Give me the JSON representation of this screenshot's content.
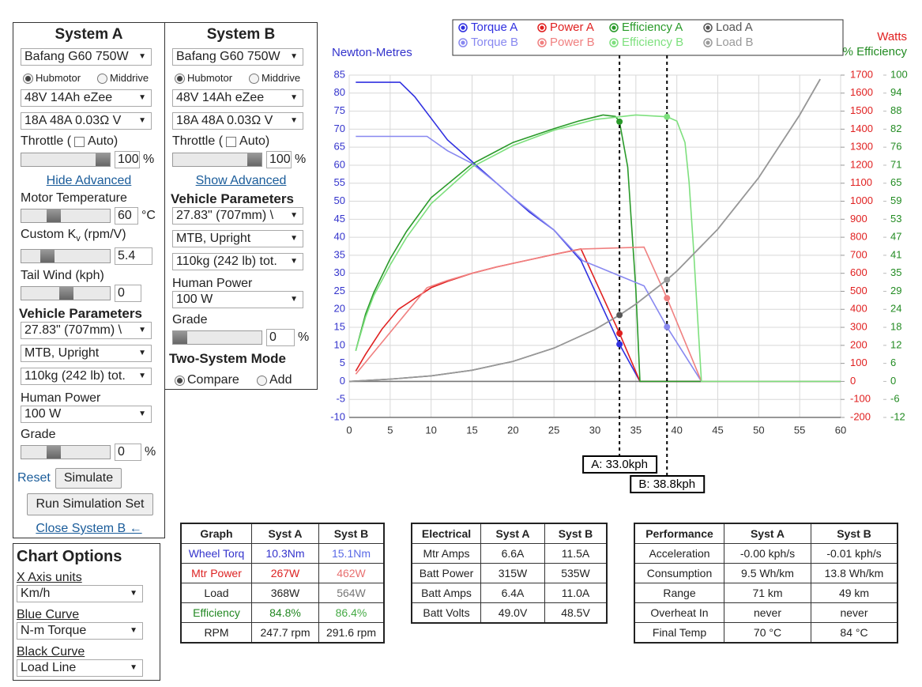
{
  "system_a": {
    "title": "System A",
    "motor": "Bafang G60 750W",
    "hubmotor": "Hubmotor",
    "middrive": "Middrive",
    "battery": "48V 14Ah eZee",
    "controller": "18A 48A 0.03Ω V",
    "throttle_label": "Throttle (",
    "auto": "Auto)",
    "throttle_value": "100",
    "throttle_unit": "%",
    "advanced_link": "Hide Advanced",
    "motor_temp_label": "Motor Temperature",
    "motor_temp_value": "60",
    "motor_temp_unit": "°C",
    "kv_label": "Custom K",
    "kv_sub": "v",
    "kv_unit": " (rpm/V)",
    "kv_value": "5.4",
    "tail_wind_label": "Tail Wind (kph)",
    "tail_wind_value": "0",
    "vehicle_params": "Vehicle Parameters",
    "wheel": "27.83\" (707mm) \\",
    "posture": "MTB, Upright",
    "weight": "110kg (242 lb) tot.",
    "human_power_label": "Human Power",
    "human_power": "100 W",
    "grade_label": "Grade",
    "grade_value": "0",
    "grade_unit": "%",
    "reset": "Reset",
    "simulate": "Simulate",
    "run_set": "Run Simulation Set",
    "close_link": "Close System B ←"
  },
  "system_b": {
    "title": "System B",
    "motor": "Bafang G60 750W",
    "hubmotor": "Hubmotor",
    "middrive": "Middrive",
    "battery": "48V 14Ah eZee",
    "controller": "18A 48A 0.03Ω V",
    "throttle_label": "Throttle (",
    "auto": "Auto)",
    "throttle_value": "100",
    "throttle_unit": "%",
    "advanced_link": "Show Advanced",
    "vehicle_params": "Vehicle Parameters",
    "wheel": "27.83\" (707mm) \\",
    "posture": "MTB, Upright",
    "weight": "110kg (242 lb) tot.",
    "human_power_label": "Human Power",
    "human_power": "100 W",
    "grade_label": "Grade",
    "grade_value": "0",
    "grade_unit": "%",
    "mode_label": "Two-System Mode",
    "compare": "Compare",
    "add": "Add"
  },
  "chart_options": {
    "title": "Chart Options",
    "x_axis_label": "X Axis units",
    "x_axis_value": "Km/h",
    "blue_label": "Blue Curve",
    "blue_value": "N-m Torque",
    "black_label": "Black Curve",
    "black_value": "Load Line"
  },
  "chart_data": {
    "type": "line",
    "y_title": "Newton-Metres",
    "y2_title": "Watts",
    "y3_title": "% Efficiency",
    "axis_colors": {
      "y": "#3333cc",
      "y2": "#e02020",
      "y3": "#228b22"
    },
    "grid": true,
    "xlim": [
      0,
      60
    ],
    "xticks": [
      0,
      5,
      10,
      15,
      20,
      25,
      30,
      35,
      40,
      45,
      50,
      55,
      60
    ],
    "ylim": [
      -10,
      85
    ],
    "yticks": [
      -10,
      -5,
      0,
      5,
      10,
      15,
      20,
      25,
      30,
      35,
      40,
      45,
      50,
      55,
      60,
      65,
      70,
      75,
      80,
      85
    ],
    "y2lim": [
      -200,
      1700
    ],
    "y2ticks": [
      -200,
      -100,
      0,
      100,
      200,
      300,
      400,
      500,
      600,
      700,
      800,
      900,
      1000,
      1100,
      1200,
      1300,
      1400,
      1500,
      1600,
      1700
    ],
    "y3lim": [
      -11.765,
      100
    ],
    "y3ticks": [
      {
        "value": -11.765,
        "label": "-12"
      },
      {
        "value": -5.882,
        "label": "-6"
      },
      0,
      {
        "value": 5.882,
        "label": "6"
      },
      {
        "value": 11.765,
        "label": "12"
      },
      {
        "value": 17.647,
        "label": "18"
      },
      {
        "value": 23.529,
        "label": "24"
      },
      {
        "value": 29.412,
        "label": "29"
      },
      {
        "value": 35.294,
        "label": "35"
      },
      {
        "value": 41.176,
        "label": "41"
      },
      {
        "value": 47.059,
        "label": "47"
      },
      {
        "value": 52.941,
        "label": "53"
      },
      {
        "value": 58.824,
        "label": "59"
      },
      {
        "value": 64.706,
        "label": "65"
      },
      {
        "value": 70.588,
        "label": "71"
      },
      {
        "value": 76.471,
        "label": "76"
      },
      {
        "value": 82.353,
        "label": "82"
      },
      {
        "value": 88.235,
        "label": "88"
      },
      {
        "value": 94.118,
        "label": "94"
      },
      100
    ],
    "series": [
      {
        "name": "Torque A",
        "color": "#3030e0",
        "axis": "y",
        "x": [
          0.8,
          6.2,
          8,
          10,
          12,
          15,
          18,
          20,
          22,
          25,
          28.3,
          33,
          35.5,
          60
        ],
        "values": [
          83,
          83,
          79,
          73,
          67,
          61,
          55,
          51,
          47,
          42,
          33.5,
          10.3,
          0,
          0
        ]
      },
      {
        "name": "Power A",
        "color": "#e02020",
        "axis": "y2",
        "x": [
          0.8,
          2,
          4,
          6,
          8,
          10,
          12,
          15,
          18,
          20,
          22,
          25,
          28.3,
          33,
          35.5,
          60
        ],
        "values": [
          57,
          150,
          290,
          400,
          460,
          520,
          555,
          600,
          635,
          655,
          675,
          705,
          735,
          267,
          0,
          0
        ]
      },
      {
        "name": "Efficiency A",
        "color": "#2a9a2a",
        "axis": "y3",
        "x": [
          0.8,
          2,
          3,
          5,
          7,
          10,
          15,
          20,
          25,
          28,
          31,
          32.5,
          33,
          34,
          35,
          35.5,
          60
        ],
        "values": [
          10,
          22,
          29,
          40,
          49,
          60,
          71,
          78,
          82.5,
          85,
          87,
          86.5,
          84.8,
          70,
          30,
          0,
          0
        ]
      },
      {
        "name": "Load A",
        "color": "#555555",
        "axis": "y2",
        "x": [
          0,
          5,
          10,
          15,
          20,
          25,
          30,
          33,
          35,
          38.8,
          40,
          45,
          50,
          55,
          57.5
        ],
        "values": [
          0,
          12.5,
          31,
          62,
          111,
          185,
          288,
          368,
          429,
          564,
          612,
          845,
          1131,
          1479,
          1677
        ]
      },
      {
        "name": "Torque B",
        "color": "#8888f0",
        "axis": "y",
        "x": [
          0.8,
          9.5,
          12,
          15,
          18,
          20,
          25,
          28.5,
          36,
          38.8,
          43,
          60
        ],
        "values": [
          68,
          68,
          64,
          60.5,
          55,
          51,
          42,
          33.5,
          26.5,
          15.1,
          0,
          0
        ]
      },
      {
        "name": "Power B",
        "color": "#f08080",
        "axis": "y2",
        "x": [
          0.8,
          9.5,
          12,
          15,
          18,
          20,
          25,
          28.5,
          36,
          38.8,
          43,
          60
        ],
        "values": [
          40,
          520,
          560,
          600,
          635,
          655,
          705,
          735,
          745,
          462,
          0,
          0
        ]
      },
      {
        "name": "Efficiency B",
        "color": "#7ee07e",
        "axis": "y3",
        "x": [
          0.8,
          2,
          3,
          5,
          7,
          10,
          15,
          20,
          25,
          30,
          35,
          38.8,
          40,
          41,
          41.5,
          42,
          43,
          60
        ],
        "values": [
          10,
          21,
          28,
          38,
          47,
          58,
          70,
          77,
          82,
          85.5,
          87,
          86.4,
          85,
          78,
          65,
          45,
          0,
          0
        ]
      },
      {
        "name": "Load B",
        "color": "#999999",
        "axis": "y2",
        "x": [
          0,
          5,
          10,
          15,
          20,
          25,
          30,
          33,
          35,
          38.8,
          40,
          45,
          50,
          55,
          57.5
        ],
        "values": [
          0,
          12.5,
          31,
          62,
          111,
          185,
          288,
          368,
          429,
          564,
          612,
          845,
          1131,
          1479,
          1677
        ]
      }
    ],
    "cursors": [
      {
        "label": "A: 33.0kph",
        "x": 33,
        "torque": 10.3,
        "power": 267,
        "efficiency": 84.8,
        "load": 368
      },
      {
        "label": "B: 38.8kph",
        "x": 38.8,
        "torque": 15.1,
        "power": 462,
        "efficiency": 86.4,
        "load": 564
      }
    ]
  },
  "tables": [
    {
      "header": [
        "Graph",
        "Syst A",
        "Syst B"
      ],
      "rows": [
        [
          "Wheel Torq",
          "10.3Nm",
          "15.1Nm"
        ],
        [
          "Mtr Power",
          "267W",
          "462W"
        ],
        [
          "Load",
          "368W",
          "564W"
        ],
        [
          "Efficiency",
          "84.8%",
          "86.4%"
        ],
        [
          "RPM",
          "247.7 rpm",
          "291.6 rpm"
        ]
      ]
    },
    {
      "header": [
        "Electrical",
        "Syst A",
        "Syst B"
      ],
      "rows": [
        [
          "Mtr Amps",
          "6.6A",
          "11.5A"
        ],
        [
          "Batt Power",
          "315W",
          "535W"
        ],
        [
          "Batt Amps",
          "6.4A",
          "11.0A"
        ],
        [
          "Batt Volts",
          "49.0V",
          "48.5V"
        ]
      ]
    },
    {
      "header": [
        "Performance",
        "Syst A",
        "Syst B"
      ],
      "rows": [
        [
          "Acceleration",
          "-0.00 kph/s",
          "-0.01 kph/s"
        ],
        [
          "Consumption",
          "9.5 Wh/km",
          "13.8 Wh/km"
        ],
        [
          "Range",
          "71 km",
          "49 km"
        ],
        [
          "Overheat In",
          "never",
          "never"
        ],
        [
          "Final Temp",
          "70 °C",
          "84 °C"
        ]
      ]
    }
  ]
}
